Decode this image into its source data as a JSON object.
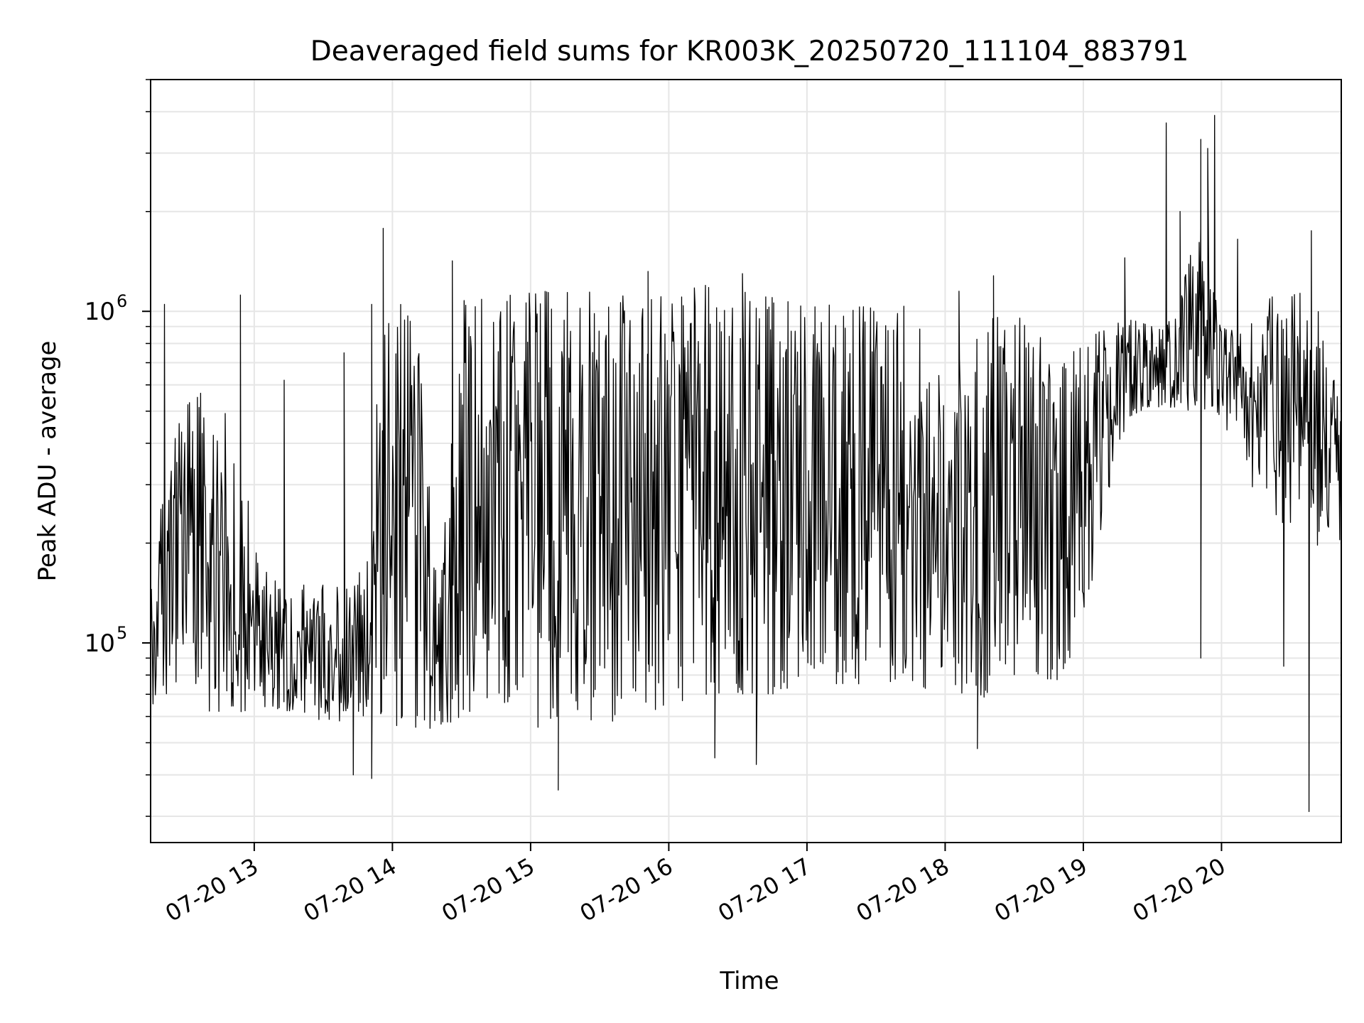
{
  "chart_data": {
    "type": "line",
    "title": "Deaveraged field sums for KR003K_20250720_111104_883791",
    "xlabel": "Time",
    "ylabel": "Peak ADU - average",
    "yscale": "log",
    "ylim": [
      25000,
      5000000
    ],
    "xlim": [
      "2025-07-20 12:15",
      "2025-07-20 20:52"
    ],
    "grid": true,
    "line_color": "#000000",
    "x_ticks": [
      {
        "value": "2025-07-20 13:00",
        "label": "07-20 13"
      },
      {
        "value": "2025-07-20 14:00",
        "label": "07-20 14"
      },
      {
        "value": "2025-07-20 15:00",
        "label": "07-20 15"
      },
      {
        "value": "2025-07-20 16:00",
        "label": "07-20 16"
      },
      {
        "value": "2025-07-20 17:00",
        "label": "07-20 17"
      },
      {
        "value": "2025-07-20 18:00",
        "label": "07-20 18"
      },
      {
        "value": "2025-07-20 19:00",
        "label": "07-20 19"
      },
      {
        "value": "2025-07-20 20:00",
        "label": "07-20 20"
      }
    ],
    "y_ticks": [
      {
        "value": 100000,
        "base": "10",
        "exp": "5"
      },
      {
        "value": 1000000,
        "base": "10",
        "exp": "6"
      }
    ],
    "series": [
      {
        "x": [
          "2025-07-20 12:15",
          "2025-07-20 12:20",
          "2025-07-20 12:25",
          "2025-07-20 12:30",
          "2025-07-20 12:35",
          "2025-07-20 12:40",
          "2025-07-20 12:45",
          "2025-07-20 12:50",
          "2025-07-20 12:55",
          "2025-07-20 13:00",
          "2025-07-20 13:10",
          "2025-07-20 13:20",
          "2025-07-20 13:30",
          "2025-07-20 13:40",
          "2025-07-20 13:50",
          "2025-07-20 13:55",
          "2025-07-20 14:00",
          "2025-07-20 14:10",
          "2025-07-20 14:20",
          "2025-07-20 14:30",
          "2025-07-20 14:45",
          "2025-07-20 15:00",
          "2025-07-20 15:15",
          "2025-07-20 15:30",
          "2025-07-20 15:45",
          "2025-07-20 16:00",
          "2025-07-20 16:15",
          "2025-07-20 16:30",
          "2025-07-20 16:45",
          "2025-07-20 17:00",
          "2025-07-20 17:15",
          "2025-07-20 17:30",
          "2025-07-20 17:45",
          "2025-07-20 18:00",
          "2025-07-20 18:10",
          "2025-07-20 18:20",
          "2025-07-20 18:30",
          "2025-07-20 18:40",
          "2025-07-20 18:50",
          "2025-07-20 19:00",
          "2025-07-20 19:10",
          "2025-07-20 19:20",
          "2025-07-20 19:30",
          "2025-07-20 19:40",
          "2025-07-20 19:50",
          "2025-07-20 20:00",
          "2025-07-20 20:10",
          "2025-07-20 20:20",
          "2025-07-20 20:30",
          "2025-07-20 20:40",
          "2025-07-20 20:52"
        ],
        "low": [
          65000,
          65000,
          70000,
          65000,
          62000,
          62000,
          62000,
          62000,
          62000,
          62000,
          62000,
          60000,
          58000,
          58000,
          60000,
          60000,
          55000,
          55000,
          55000,
          60000,
          60000,
          55000,
          58000,
          58000,
          58000,
          60000,
          70000,
          70000,
          70000,
          70000,
          75000,
          75000,
          75000,
          70000,
          70000,
          68000,
          68000,
          70000,
          78000,
          110000,
          250000,
          480000,
          520000,
          500000,
          500000,
          480000,
          300000,
          250000,
          220000,
          200000,
          180000
        ],
        "high": [
          160000,
          300000,
          450000,
          560000,
          550000,
          600000,
          550000,
          450000,
          350000,
          200000,
          150000,
          150000,
          150000,
          150000,
          180000,
          1050000,
          1050000,
          1050000,
          130000,
          1100000,
          1100000,
          1150000,
          1150000,
          1150000,
          1100000,
          1150000,
          1200000,
          1200000,
          1100000,
          1050000,
          1050000,
          1050000,
          1050000,
          600000,
          800000,
          1000000,
          1000000,
          900000,
          700000,
          800000,
          900000,
          950000,
          900000,
          950000,
          2000000,
          900000,
          850000,
          1100000,
          1150000,
          1150000,
          500000
        ],
        "spikes": [
          {
            "x": "2025-07-20 12:21",
            "y": 1050000
          },
          {
            "x": "2025-07-20 12:54",
            "y": 1120000
          },
          {
            "x": "2025-07-20 13:13",
            "y": 620000
          },
          {
            "x": "2025-07-20 13:39",
            "y": 750000
          },
          {
            "x": "2025-07-20 13:51",
            "y": 1050000
          },
          {
            "x": "2025-07-20 13:56",
            "y": 1780000
          },
          {
            "x": "2025-07-20 14:26",
            "y": 1420000
          },
          {
            "x": "2025-07-20 15:51",
            "y": 1320000
          },
          {
            "x": "2025-07-20 16:32",
            "y": 1300000
          },
          {
            "x": "2025-07-20 18:06",
            "y": 1150000
          },
          {
            "x": "2025-07-20 18:21",
            "y": 1280000
          },
          {
            "x": "2025-07-20 19:18",
            "y": 1450000
          },
          {
            "x": "2025-07-20 19:36",
            "y": 3700000
          },
          {
            "x": "2025-07-20 19:42",
            "y": 2000000
          },
          {
            "x": "2025-07-20 19:51",
            "y": 3300000
          },
          {
            "x": "2025-07-20 19:54",
            "y": 3100000
          },
          {
            "x": "2025-07-20 19:57",
            "y": 3900000
          },
          {
            "x": "2025-07-20 20:07",
            "y": 1650000
          },
          {
            "x": "2025-07-20 20:39",
            "y": 1750000
          }
        ],
        "dips": [
          {
            "x": "2025-07-20 13:43",
            "y": 40000
          },
          {
            "x": "2025-07-20 13:51",
            "y": 39000
          },
          {
            "x": "2025-07-20 15:12",
            "y": 36000
          },
          {
            "x": "2025-07-20 16:20",
            "y": 45000
          },
          {
            "x": "2025-07-20 16:38",
            "y": 43000
          },
          {
            "x": "2025-07-20 18:14",
            "y": 48000
          },
          {
            "x": "2025-07-20 19:51",
            "y": 90000
          },
          {
            "x": "2025-07-20 20:27",
            "y": 85000
          },
          {
            "x": "2025-07-20 20:38",
            "y": 31000
          }
        ]
      }
    ]
  }
}
